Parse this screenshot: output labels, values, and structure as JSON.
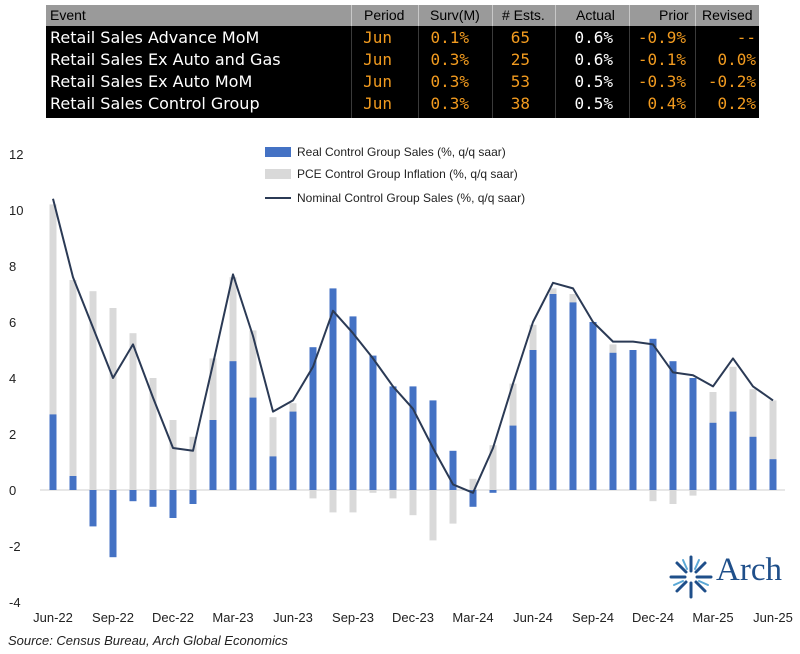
{
  "table": {
    "headers": [
      "Event",
      "Period",
      "Surv(M)",
      "# Ests.",
      "Actual",
      "Prior",
      "Revised"
    ],
    "rows": [
      {
        "event": "Retail Sales Advance MoM",
        "period": "Jun",
        "surv": "0.1%",
        "ests": "65",
        "actual": "0.6%",
        "prior": "-0.9%",
        "revised": "--"
      },
      {
        "event": "Retail Sales Ex Auto and Gas",
        "period": "Jun",
        "surv": "0.3%",
        "ests": "25",
        "actual": "0.6%",
        "prior": "-0.1%",
        "revised": "0.0%"
      },
      {
        "event": "Retail Sales Ex Auto MoM",
        "period": "Jun",
        "surv": "0.3%",
        "ests": "53",
        "actual": "0.5%",
        "prior": "-0.3%",
        "revised": "-0.2%"
      },
      {
        "event": "Retail Sales Control Group",
        "period": "Jun",
        "surv": "0.3%",
        "ests": "38",
        "actual": "0.5%",
        "prior": "0.4%",
        "revised": "0.2%"
      }
    ]
  },
  "chart_data": {
    "type": "bar",
    "categories": [
      "Jun-22",
      "Jul-22",
      "Aug-22",
      "Sep-22",
      "Oct-22",
      "Nov-22",
      "Dec-22",
      "Jan-23",
      "Feb-23",
      "Mar-23",
      "Apr-23",
      "May-23",
      "Jun-23",
      "Jul-23",
      "Aug-23",
      "Sep-23",
      "Oct-23",
      "Nov-23",
      "Dec-23",
      "Jan-24",
      "Feb-24",
      "Mar-24",
      "Apr-24",
      "May-24",
      "Jun-24",
      "Jul-24",
      "Aug-24",
      "Sep-24",
      "Oct-24",
      "Nov-24",
      "Dec-24",
      "Jan-25",
      "Feb-25",
      "Mar-25",
      "Apr-25",
      "May-25",
      "Jun-25"
    ],
    "x_tick_labels": [
      "Jun-22",
      "Sep-22",
      "Dec-22",
      "Mar-23",
      "Jun-23",
      "Sep-23",
      "Dec-23",
      "Mar-24",
      "Jun-24",
      "Sep-24",
      "Dec-24",
      "Mar-25",
      "Jun-25"
    ],
    "y_ticks": [
      "-4",
      "-2",
      "0",
      "2",
      "4",
      "6",
      "8",
      "10",
      "12"
    ],
    "ylim": [
      -4,
      12
    ],
    "series": [
      {
        "name": "Real Control Group Sales (%, q/q saar)",
        "kind": "bar",
        "color": "#4472c4",
        "values": [
          2.7,
          0.5,
          -1.3,
          -2.4,
          -0.4,
          -0.6,
          -1.0,
          -0.5,
          2.5,
          4.6,
          3.3,
          1.2,
          2.8,
          5.1,
          7.2,
          6.2,
          4.8,
          3.7,
          3.7,
          3.2,
          1.4,
          -0.6,
          -0.1,
          2.3,
          5.0,
          7.0,
          6.7,
          6.0,
          4.9,
          5.0,
          5.4,
          4.6,
          4.0,
          2.4,
          2.8,
          1.9,
          1.1
        ]
      },
      {
        "name": "PCE Control Group Inflation (%, q/q saar)",
        "kind": "bar",
        "color": "#d9d9d9",
        "values": [
          10.2,
          7.5,
          7.1,
          6.5,
          5.6,
          4.0,
          2.5,
          1.9,
          4.7,
          7.6,
          5.7,
          2.6,
          3.1,
          -0.3,
          -0.8,
          -0.8,
          -0.1,
          -0.3,
          -0.9,
          -1.8,
          -1.2,
          0.4,
          1.6,
          3.8,
          5.9,
          7.2,
          7.0,
          5.9,
          5.2,
          4.8,
          -0.4,
          -0.5,
          -0.2,
          3.5,
          4.4,
          3.6,
          3.2
        ]
      },
      {
        "name": "Nominal Control Group Sales (%, q/q saar)",
        "kind": "line",
        "color": "#2b3a55",
        "values": [
          10.4,
          7.6,
          5.8,
          4.0,
          5.2,
          3.3,
          1.5,
          1.4,
          4.5,
          7.7,
          5.5,
          2.8,
          3.2,
          4.4,
          6.4,
          5.6,
          4.7,
          3.7,
          2.9,
          1.5,
          0.2,
          -0.1,
          1.5,
          3.8,
          6.0,
          7.4,
          7.2,
          6.0,
          5.3,
          5.3,
          5.2,
          4.2,
          4.1,
          3.7,
          4.7,
          3.7,
          3.2
        ]
      }
    ]
  },
  "source": "Source: Census Bureau, Arch Global Economics",
  "logo": {
    "text": "Arch",
    "icon": "star-burst-icon",
    "color": "#1f4f8a"
  }
}
